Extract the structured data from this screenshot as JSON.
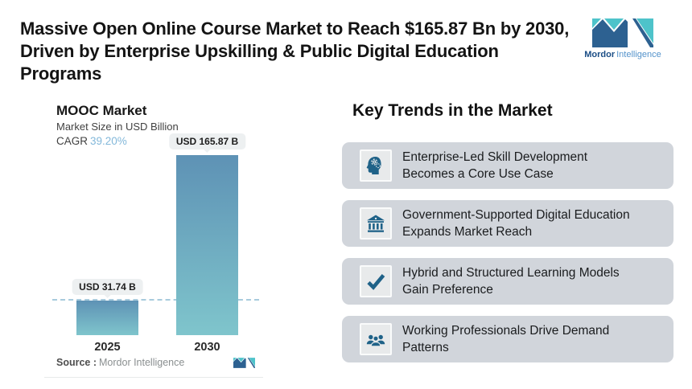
{
  "header": {
    "title_line1": "Massive Open Online Course Market to Reach $165.87 Bn by 2030,",
    "title_line2": "Driven by Enterprise Upskilling & Public Digital Education Programs",
    "logo": {
      "brand_bold": "Mordor",
      "brand_light": "Intelligence"
    }
  },
  "chart": {
    "title": "MOOC Market",
    "subtitle": "Market Size in USD Billion",
    "cagr_label": "CAGR",
    "cagr_value": "39.20%",
    "source_label": "Source :",
    "source_value": "Mordor Intelligence"
  },
  "chart_data": {
    "type": "bar",
    "title": "MOOC Market",
    "ylabel": "Market Size in USD Billion",
    "cagr": "39.20%",
    "categories": [
      "2025",
      "2030"
    ],
    "values": [
      31.74,
      165.87
    ],
    "value_labels": [
      "USD 31.74 B",
      "USD 165.87 B"
    ],
    "unit": "USD Billion",
    "dashed_reference_value": 31.74,
    "grid": false,
    "legend": false
  },
  "trends": {
    "heading": "Key Trends in the Market",
    "items": [
      {
        "icon": "head-gears-icon",
        "line1": "Enterprise-Led Skill Development",
        "line2": "Becomes a Core Use Case"
      },
      {
        "icon": "bank-icon",
        "line1": "Government-Supported Digital Education",
        "line2": "Expands Market Reach"
      },
      {
        "icon": "check-icon",
        "line1": "Hybrid and Structured Learning Models",
        "line2": "Gain Preference"
      },
      {
        "icon": "people-icon",
        "line1": "Working Professionals Drive Demand",
        "line2": "Patterns"
      }
    ]
  },
  "colors": {
    "icon_blue": "#1f6288",
    "card_bg": "#d1d5db",
    "tile_bg": "#e8eaeb",
    "bar_top": "#5e92b5",
    "bar_bottom": "#7fc5cc",
    "dash": "#a8cbdd",
    "cagr_blue": "#83b8da",
    "label_box_bg": "#edf0f1",
    "logo_dark": "#2d6191",
    "logo_teal": "#4ec3ca"
  }
}
